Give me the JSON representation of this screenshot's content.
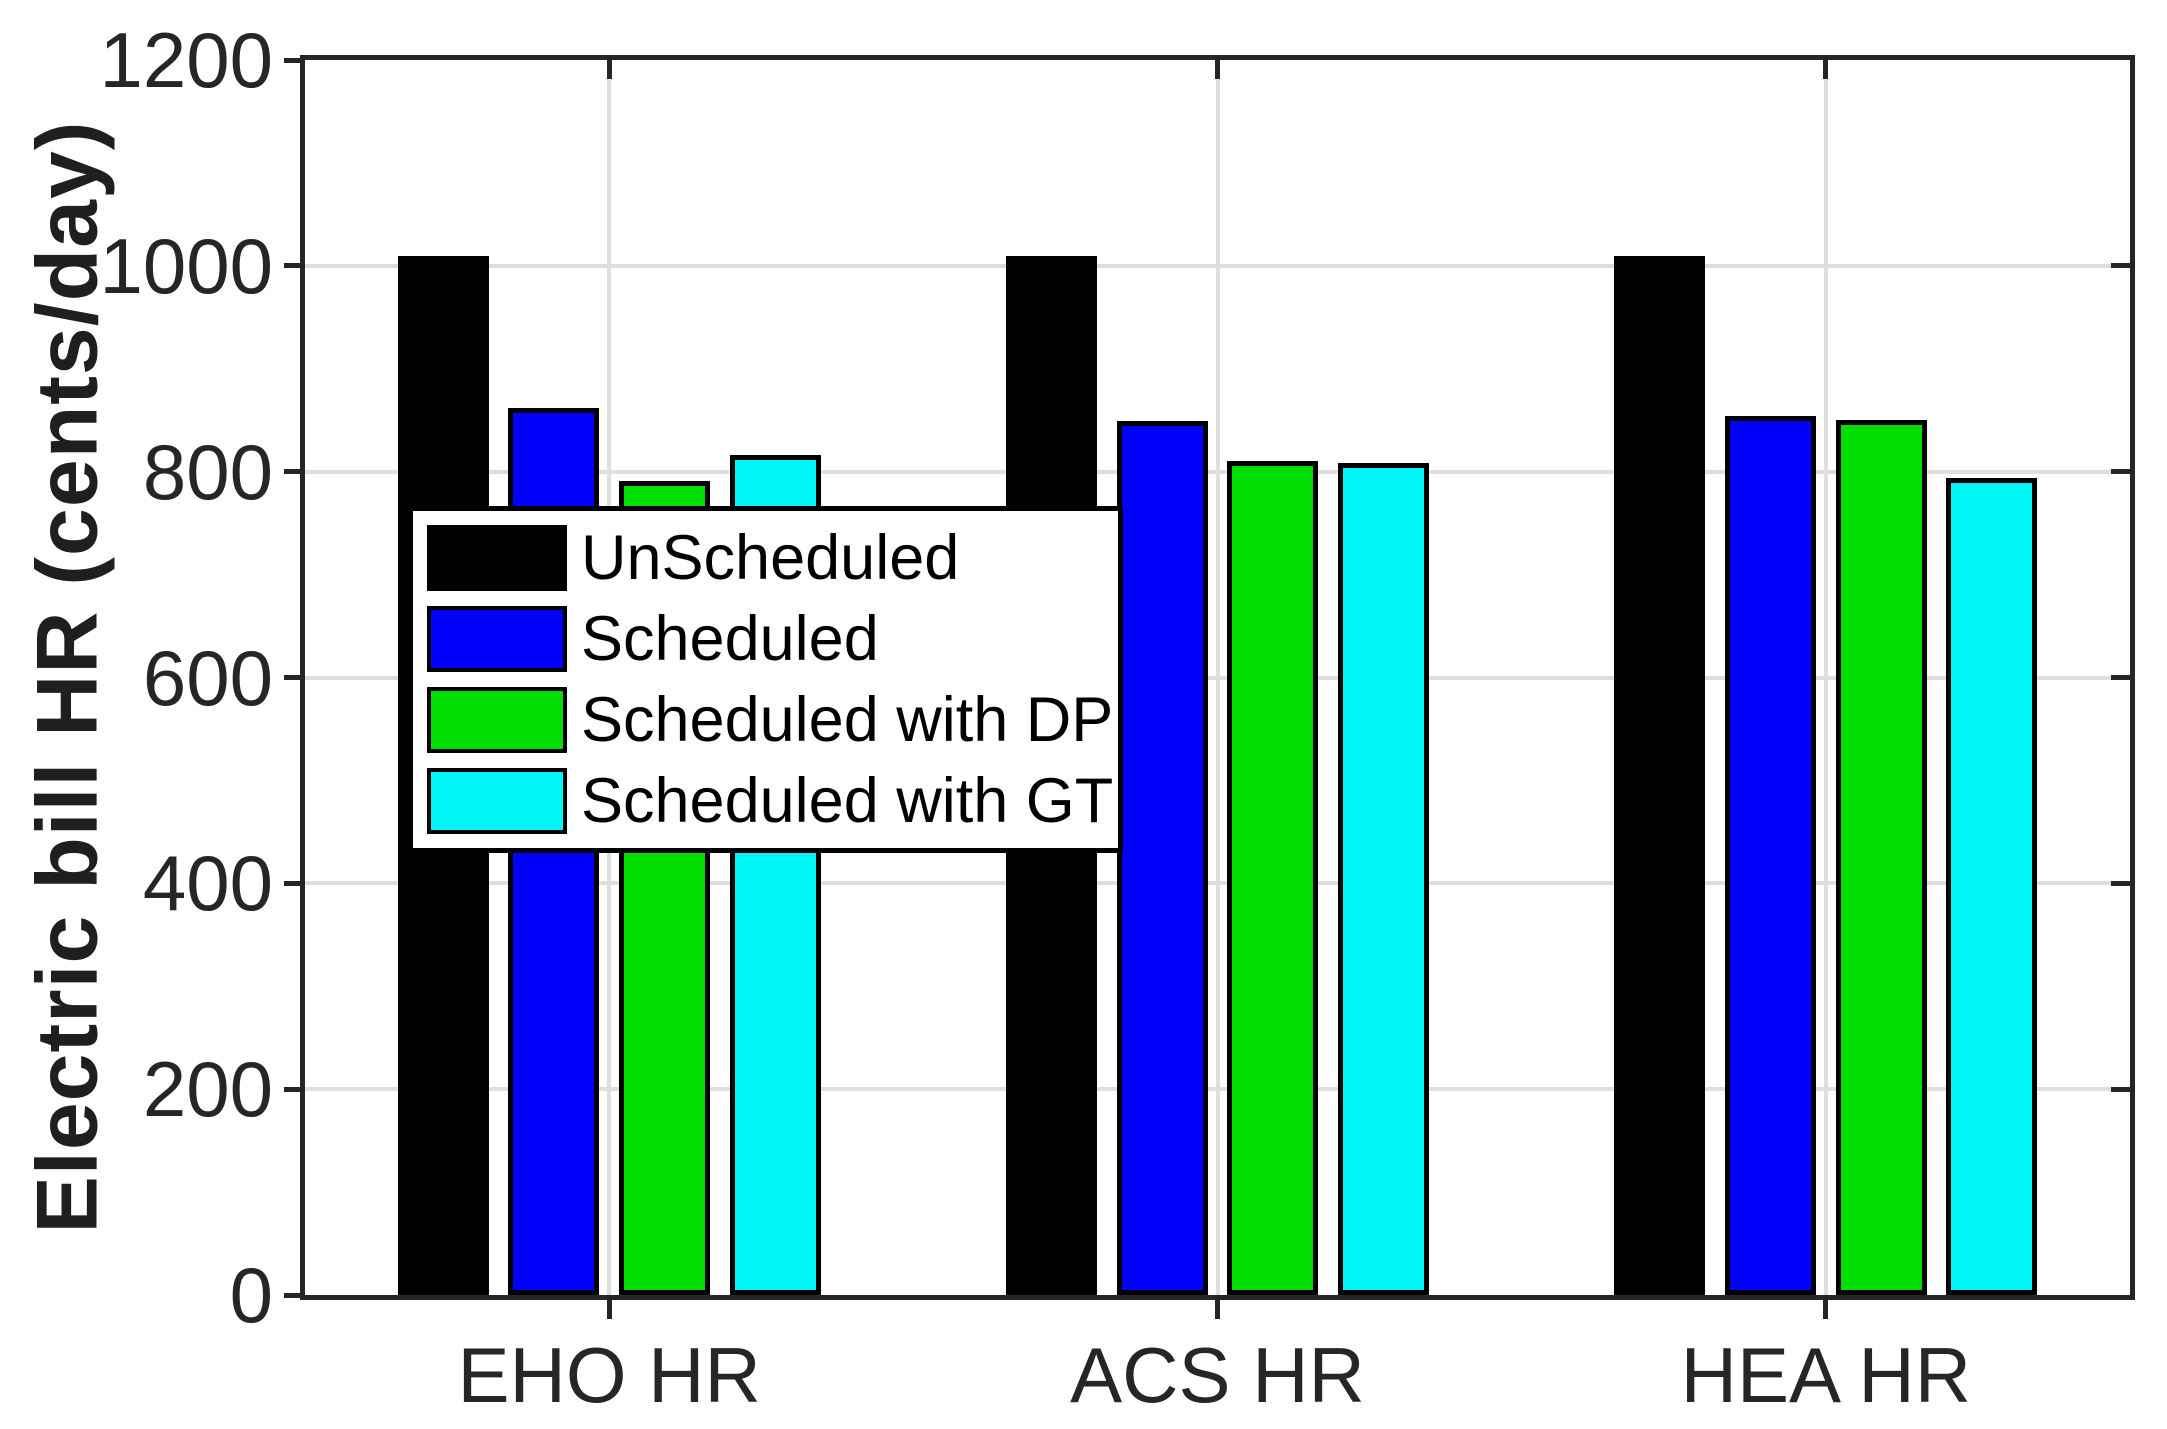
{
  "chart_data": {
    "type": "bar",
    "title": "",
    "xlabel": "",
    "ylabel": "Electric bill HR (cents/day)",
    "categories": [
      "EHO HR",
      "ACS HR",
      "HEA HR"
    ],
    "series": [
      {
        "name": "UnScheduled",
        "color": "#000000",
        "values": [
          1010,
          1010,
          1010
        ]
      },
      {
        "name": "Scheduled",
        "color": "#0000ff",
        "values": [
          862,
          849,
          854
        ]
      },
      {
        "name": "Scheduled with DP",
        "color": "#00dd00",
        "values": [
          791,
          810,
          850
        ]
      },
      {
        "name": "Scheduled with GT",
        "color": "#00f5f5",
        "values": [
          816,
          808,
          794
        ]
      }
    ],
    "ylim": [
      0,
      1200
    ],
    "yticks": [
      0,
      200,
      400,
      600,
      800,
      1000,
      1200
    ],
    "grid": true,
    "legend_position": "inside-middle-left"
  },
  "colors": {
    "background": "#ffffff",
    "axis": "#262626",
    "grid": "#dedede",
    "tick_label": "#262626",
    "legend_border": "#000000"
  }
}
